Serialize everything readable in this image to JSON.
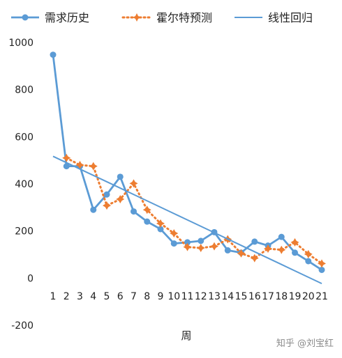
{
  "chart_data": {
    "type": "line",
    "title": "",
    "xlabel": "周",
    "ylabel": "",
    "ylim": [
      -200,
      1000
    ],
    "yticks": [
      -200,
      0,
      200,
      400,
      600,
      800,
      1000
    ],
    "categories": [
      "1",
      "2",
      "3",
      "4",
      "5",
      "6",
      "7",
      "8",
      "9",
      "10",
      "11",
      "12",
      "13",
      "14",
      "15",
      "16",
      "17",
      "18",
      "19",
      "20",
      "21"
    ],
    "grid": false,
    "legend_position": "top",
    "series": [
      {
        "name": "需求历史",
        "color": "#5b9bd5",
        "style": "solid-with-markers",
        "values": [
          948,
          475,
          475,
          290,
          355,
          430,
          283,
          240,
          208,
          147,
          152,
          158,
          195,
          118,
          108,
          155,
          138,
          175,
          108,
          72,
          35
        ]
      },
      {
        "name": "霍尔特预测",
        "color": "#ed7d31",
        "style": "dotted-with-markers",
        "values": [
          null,
          510,
          480,
          475,
          308,
          335,
          402,
          290,
          232,
          190,
          132,
          128,
          135,
          165,
          105,
          85,
          125,
          120,
          152,
          102,
          62
        ]
      },
      {
        "name": "线性回归",
        "color": "#5b9bd5",
        "style": "solid",
        "values": [
          517,
          490,
          463,
          436,
          409,
          382,
          355,
          328,
          301,
          274,
          247,
          220,
          193,
          166,
          139,
          112,
          85,
          58,
          31,
          4,
          -23
        ]
      }
    ]
  },
  "watermark": {
    "text": "知乎 @刘宝红"
  }
}
